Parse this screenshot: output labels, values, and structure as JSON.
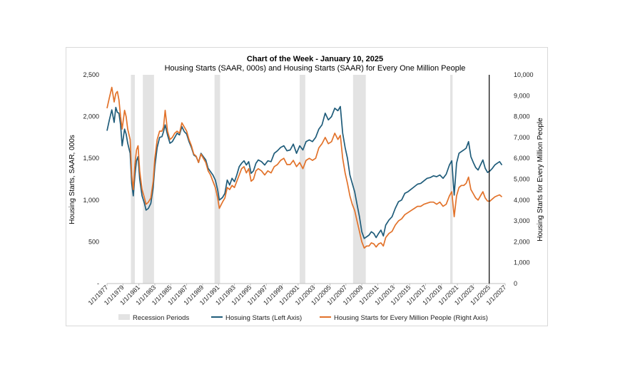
{
  "chart_data": {
    "type": "line",
    "title": "Chart of the Week - January 10, 2025",
    "subtitle": "Housing Starts (SAAR, 000s) and Housing Starts (SAAR) for Every One Million People",
    "ylabel": "Housing Starts, SAAR, 000s",
    "y2label": "Housing Starts for Every Million People",
    "ylim": [
      0,
      2500
    ],
    "y2lim": [
      0,
      10000
    ],
    "xlim": [
      1977,
      2027
    ],
    "yticks": [
      "-",
      "500",
      "1,000",
      "1,500",
      "2,000",
      "2,500"
    ],
    "y2ticks": [
      "0",
      "1,000",
      "2,000",
      "3,000",
      "4,000",
      "5,000",
      "6,000",
      "7,000",
      "8,000",
      "9,000",
      "10,000"
    ],
    "xticks": [
      "1/1/1977",
      "1/1/1979",
      "1/1/1981",
      "1/1/1983",
      "1/1/1985",
      "1/1/1987",
      "1/1/1989",
      "1/1/1991",
      "1/1/1993",
      "1/1/1995",
      "1/1/1997",
      "1/1/1999",
      "1/1/2001",
      "1/1/2003",
      "1/1/2005",
      "1/1/2007",
      "1/1/2009",
      "1/1/2011",
      "1/1/2013",
      "1/1/2015",
      "1/1/2017",
      "1/1/2019",
      "1/1/2021",
      "1/1/2023",
      "1/1/2025",
      "1/1/2027"
    ],
    "recessions": [
      [
        1980.0,
        1980.5
      ],
      [
        1981.5,
        1982.9
      ],
      [
        1990.5,
        1991.2
      ],
      [
        2001.2,
        2001.9
      ],
      [
        2007.9,
        2009.5
      ],
      [
        2020.1,
        2020.4
      ]
    ],
    "vline": 2025.0,
    "legend": [
      "Recession Periods",
      "Hosuing Starts (Left Axis)",
      "Housing Starts for Every Million People (Right Axis)"
    ],
    "series": [
      {
        "name": "Hosuing Starts (Left Axis)",
        "axis": "left",
        "color": "#1f5c7a",
        "x": [
          1977.0,
          1977.3,
          1977.6,
          1977.9,
          1978.1,
          1978.3,
          1978.5,
          1978.7,
          1978.9,
          1979.2,
          1979.4,
          1979.6,
          1979.9,
          1980.1,
          1980.3,
          1980.5,
          1980.7,
          1980.9,
          1981.1,
          1981.4,
          1981.7,
          1981.9,
          1982.2,
          1982.5,
          1982.8,
          1983.0,
          1983.3,
          1983.6,
          1983.9,
          1984.1,
          1984.3,
          1984.6,
          1984.9,
          1985.2,
          1985.5,
          1985.8,
          1986.1,
          1986.4,
          1986.7,
          1987.0,
          1987.3,
          1987.6,
          1987.9,
          1988.2,
          1988.5,
          1988.8,
          1989.1,
          1989.4,
          1989.7,
          1990.0,
          1990.3,
          1990.6,
          1990.9,
          1991.1,
          1991.5,
          1991.8,
          1992.1,
          1992.4,
          1992.7,
          1993.0,
          1993.3,
          1993.6,
          1993.9,
          1994.2,
          1994.5,
          1994.8,
          1995.1,
          1995.4,
          1995.7,
          1996.0,
          1996.4,
          1996.8,
          1997.2,
          1997.6,
          1998.0,
          1998.4,
          1998.8,
          1999.2,
          1999.6,
          2000.0,
          2000.4,
          2000.8,
          2001.2,
          2001.6,
          2002.0,
          2002.4,
          2002.8,
          2003.2,
          2003.6,
          2004.0,
          2004.4,
          2004.8,
          2005.2,
          2005.6,
          2006.0,
          2006.3,
          2006.6,
          2006.9,
          2007.2,
          2007.5,
          2007.8,
          2008.1,
          2008.4,
          2008.7,
          2009.0,
          2009.3,
          2009.6,
          2009.9,
          2010.2,
          2010.5,
          2010.8,
          2011.1,
          2011.4,
          2011.7,
          2012.0,
          2012.4,
          2012.8,
          2013.2,
          2013.6,
          2014.0,
          2014.4,
          2014.8,
          2015.2,
          2015.6,
          2016.0,
          2016.4,
          2016.8,
          2017.2,
          2017.6,
          2018.0,
          2018.4,
          2018.8,
          2019.2,
          2019.6,
          2020.0,
          2020.3,
          2020.6,
          2020.9,
          2021.2,
          2021.5,
          2021.8,
          2022.1,
          2022.4,
          2022.7,
          2023.0,
          2023.3,
          2023.6,
          2023.9,
          2024.2,
          2024.5,
          2024.8,
          2025.1,
          2025.4,
          2025.7,
          2026.0,
          2026.3,
          2026.6
        ],
        "y": [
          1830,
          1960,
          2080,
          1930,
          2110,
          2050,
          2040,
          1900,
          1650,
          1850,
          1790,
          1680,
          1560,
          1200,
          1050,
          1300,
          1470,
          1520,
          1250,
          1050,
          960,
          880,
          900,
          960,
          1150,
          1400,
          1630,
          1750,
          1760,
          1820,
          1900,
          1780,
          1680,
          1700,
          1750,
          1800,
          1780,
          1880,
          1820,
          1790,
          1700,
          1630,
          1540,
          1520,
          1450,
          1560,
          1520,
          1480,
          1380,
          1340,
          1300,
          1240,
          1120,
          1000,
          1030,
          1080,
          1240,
          1180,
          1260,
          1220,
          1300,
          1400,
          1440,
          1470,
          1420,
          1460,
          1320,
          1350,
          1440,
          1480,
          1460,
          1420,
          1470,
          1460,
          1560,
          1590,
          1630,
          1650,
          1590,
          1600,
          1670,
          1560,
          1650,
          1600,
          1700,
          1720,
          1700,
          1750,
          1850,
          1900,
          2040,
          1960,
          2000,
          2100,
          2070,
          2120,
          1800,
          1630,
          1500,
          1300,
          1200,
          1100,
          950,
          800,
          620,
          540,
          560,
          580,
          620,
          600,
          550,
          600,
          640,
          570,
          700,
          760,
          800,
          900,
          980,
          1000,
          1080,
          1100,
          1130,
          1160,
          1190,
          1200,
          1230,
          1260,
          1270,
          1290,
          1280,
          1300,
          1260,
          1310,
          1420,
          1470,
          1060,
          1440,
          1560,
          1580,
          1600,
          1620,
          1700,
          1520,
          1450,
          1390,
          1360,
          1420,
          1480,
          1380,
          1330,
          1350,
          1380,
          1420,
          1440,
          1460,
          1420
        ]
      },
      {
        "name": "Housing Starts for Every Million People (Right Axis)",
        "axis": "right",
        "color": "#e2722a",
        "x": [
          1977.0,
          1977.3,
          1977.6,
          1977.9,
          1978.1,
          1978.3,
          1978.5,
          1978.7,
          1978.9,
          1979.2,
          1979.4,
          1979.6,
          1979.9,
          1980.1,
          1980.3,
          1980.5,
          1980.7,
          1980.9,
          1981.1,
          1981.4,
          1981.7,
          1981.9,
          1982.2,
          1982.5,
          1982.8,
          1983.0,
          1983.3,
          1983.6,
          1983.9,
          1984.1,
          1984.3,
          1984.6,
          1984.9,
          1985.2,
          1985.5,
          1985.8,
          1986.1,
          1986.4,
          1986.7,
          1987.0,
          1987.3,
          1987.6,
          1987.9,
          1988.2,
          1988.5,
          1988.8,
          1989.1,
          1989.4,
          1989.7,
          1990.0,
          1990.3,
          1990.6,
          1990.9,
          1991.1,
          1991.5,
          1991.8,
          1992.1,
          1992.4,
          1992.7,
          1993.0,
          1993.3,
          1993.6,
          1993.9,
          1994.2,
          1994.5,
          1994.8,
          1995.1,
          1995.4,
          1995.7,
          1996.0,
          1996.4,
          1996.8,
          1997.2,
          1997.6,
          1998.0,
          1998.4,
          1998.8,
          1999.2,
          1999.6,
          2000.0,
          2000.4,
          2000.8,
          2001.2,
          2001.6,
          2002.0,
          2002.4,
          2002.8,
          2003.2,
          2003.6,
          2004.0,
          2004.4,
          2004.8,
          2005.2,
          2005.6,
          2006.0,
          2006.3,
          2006.6,
          2006.9,
          2007.2,
          2007.5,
          2007.8,
          2008.1,
          2008.4,
          2008.7,
          2009.0,
          2009.3,
          2009.6,
          2009.9,
          2010.2,
          2010.5,
          2010.8,
          2011.1,
          2011.4,
          2011.7,
          2012.0,
          2012.4,
          2012.8,
          2013.2,
          2013.6,
          2014.0,
          2014.4,
          2014.8,
          2015.2,
          2015.6,
          2016.0,
          2016.4,
          2016.8,
          2017.2,
          2017.6,
          2018.0,
          2018.4,
          2018.8,
          2019.2,
          2019.6,
          2020.0,
          2020.3,
          2020.6,
          2020.9,
          2021.2,
          2021.5,
          2021.8,
          2022.1,
          2022.4,
          2022.7,
          2023.0,
          2023.3,
          2023.6,
          2023.9,
          2024.2,
          2024.5,
          2024.8,
          2025.1,
          2025.4,
          2025.7,
          2026.0,
          2026.3,
          2026.6
        ],
        "y": [
          8400,
          8900,
          9400,
          8700,
          9100,
          9200,
          8800,
          8000,
          7400,
          8300,
          8000,
          7400,
          6900,
          5200,
          4500,
          5700,
          6400,
          6600,
          5400,
          4500,
          4100,
          3800,
          3900,
          4100,
          4900,
          6000,
          6900,
          7300,
          7300,
          7500,
          8300,
          7300,
          6900,
          7000,
          7200,
          7300,
          7200,
          7700,
          7500,
          7300,
          6900,
          6600,
          6200,
          6100,
          5800,
          6200,
          6000,
          5800,
          5400,
          5200,
          4900,
          4600,
          4100,
          3600,
          3900,
          4100,
          4600,
          4500,
          4700,
          4600,
          4900,
          5200,
          5500,
          5600,
          5300,
          5500,
          4900,
          5000,
          5400,
          5500,
          5400,
          5200,
          5400,
          5300,
          5600,
          5700,
          5900,
          6000,
          5700,
          5700,
          5900,
          5600,
          5800,
          5500,
          5900,
          6000,
          5900,
          6000,
          6500,
          6700,
          7000,
          6700,
          6800,
          7200,
          6900,
          7100,
          6000,
          5300,
          4800,
          4200,
          3800,
          3500,
          3000,
          2500,
          2000,
          1700,
          1800,
          1800,
          1950,
          1900,
          1750,
          1900,
          1950,
          1800,
          2200,
          2400,
          2500,
          2800,
          3000,
          3100,
          3300,
          3400,
          3500,
          3600,
          3700,
          3700,
          3800,
          3850,
          3900,
          3900,
          3800,
          3900,
          3700,
          3800,
          4200,
          4400,
          3200,
          4200,
          4600,
          4700,
          4700,
          4800,
          5100,
          4500,
          4300,
          4100,
          4000,
          4200,
          4400,
          4100,
          3950,
          3950,
          4050,
          4150,
          4200,
          4250,
          4150
        ]
      }
    ]
  }
}
